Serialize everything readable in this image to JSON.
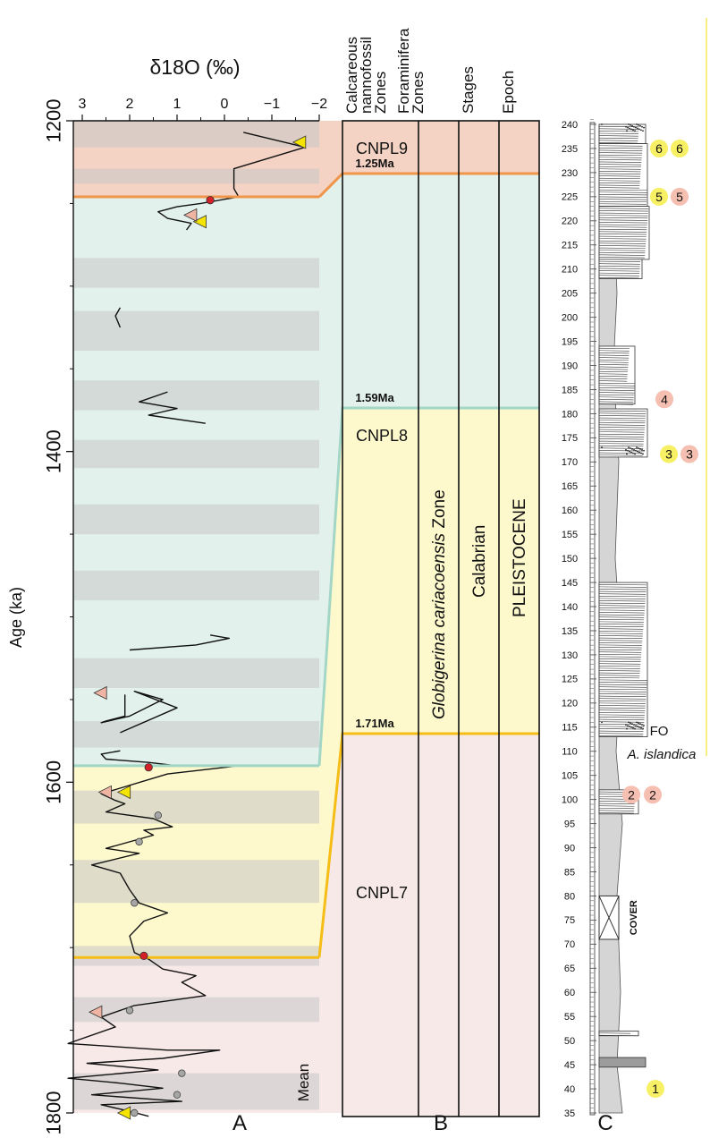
{
  "chart_data": [
    {
      "panel": "A",
      "type": "line",
      "xlabel": "δ18O (‰)",
      "ylabel": "Age (ka)",
      "mean_label": "Mean",
      "x_ticks": [
        "3",
        "2",
        "1",
        "0",
        "−1",
        "−2"
      ],
      "x_tick_values": [
        3,
        2,
        1,
        0,
        -1,
        -2
      ],
      "x_range": [
        3.3,
        -2
      ],
      "x_axis_reversed": true,
      "y_ticks": [
        "1200",
        "1400",
        "1600",
        "1800"
      ],
      "y_tick_values": [
        1200,
        1400,
        1600,
        1800
      ],
      "y_range": [
        1200,
        1800
      ],
      "y_axis_inverted": true,
      "background_bands": {
        "colors": {
          "pink": "#f4d2c4",
          "mint": "#e2f1ec",
          "yellow": "#fdf9cd",
          "rose": "#f7e9e8",
          "glacial_grey": "#c6c6c6"
        },
        "zones": [
          {
            "from": 1200,
            "to": 1246,
            "color": "pink"
          },
          {
            "from": 1246,
            "to": 1590,
            "color": "mint"
          },
          {
            "from": 1590,
            "to": 1706,
            "color": "yellow"
          },
          {
            "from": 1706,
            "to": 1800,
            "color": "rose"
          }
        ],
        "grey_intervals": [
          [
            1200,
            1216
          ],
          [
            1229,
            1238
          ],
          [
            1283,
            1301
          ],
          [
            1315,
            1339
          ],
          [
            1357,
            1375
          ],
          [
            1393,
            1410
          ],
          [
            1432,
            1450
          ],
          [
            1472,
            1490
          ],
          [
            1525,
            1543
          ],
          [
            1563,
            1579
          ],
          [
            1605,
            1625
          ],
          [
            1647,
            1673
          ],
          [
            1699,
            1711
          ],
          [
            1730,
            1745
          ],
          [
            1776,
            1798
          ]
        ]
      },
      "series": [
        {
          "color": "#111111",
          "segments": [
            [
              [
                -0.4,
                1207
              ],
              [
                -1.7,
                1216
              ],
              [
                -0.2,
                1229
              ],
              [
                -0.2,
                1237
              ],
              [
                -0.2,
                1241
              ],
              [
                -0.3,
                1246
              ],
              [
                0.5,
                1250
              ],
              [
                1,
                1252
              ],
              [
                1.4,
                1255
              ],
              [
                1.2,
                1259
              ],
              [
                0.7,
                1262
              ],
              [
                0.8,
                1266
              ]
            ],
            [
              [
                2.2,
                1313
              ],
              [
                2.3,
                1318
              ],
              [
                2.2,
                1325
              ]
            ],
            [
              [
                1.2,
                1364
              ],
              [
                1.8,
                1370
              ],
              [
                1.0,
                1374
              ],
              [
                1.6,
                1378
              ],
              [
                0.4,
                1383
              ]
            ],
            [
              [
                2.0,
                1520
              ],
              [
                0.6,
                1517
              ],
              [
                -0.1,
                1513
              ],
              [
                0.3,
                1511
              ]
            ],
            [
              [
                2.1,
                1547
              ],
              [
                2.1,
                1560
              ],
              [
                2.5,
                1563
              ],
              [
                2.6,
                1564
              ],
              [
                2.0,
                1560
              ],
              [
                1.3,
                1550
              ],
              [
                1.9,
                1545
              ],
              [
                1.0,
                1555
              ],
              [
                2.2,
                1570
              ]
            ],
            [
              [
                2.2,
                1581
              ],
              [
                2.6,
                1583
              ],
              [
                2.5,
                1586
              ],
              [
                1.6,
                1588
              ],
              [
                1.0,
                1590
              ],
              [
                -0.3,
                1590
              ],
              [
                1.2,
                1595
              ],
              [
                2.6,
                1607
              ],
              [
                2.3,
                1611
              ],
              [
                2.1,
                1613
              ],
              [
                2.5,
                1618
              ],
              [
                1.5,
                1622
              ],
              [
                1.1,
                1627
              ],
              [
                1.7,
                1629
              ],
              [
                1.5,
                1632
              ],
              [
                2.5,
                1640
              ],
              [
                1.8,
                1643
              ],
              [
                2.8,
                1650
              ],
              [
                2.2,
                1655
              ],
              [
                2.0,
                1665
              ],
              [
                1.8,
                1673
              ],
              [
                1.2,
                1679
              ],
              [
                1.7,
                1684
              ],
              [
                2.0,
                1693
              ],
              [
                1.9,
                1703
              ],
              [
                1.6,
                1707
              ],
              [
                1.3,
                1713
              ],
              [
                0.6,
                1717
              ],
              [
                0.9,
                1721
              ],
              [
                0.4,
                1729
              ],
              [
                1.9,
                1735
              ],
              [
                2.6,
                1742
              ],
              [
                2.3,
                1748
              ],
              [
                3.3,
                1758
              ],
              [
                1.2,
                1762
              ],
              [
                0.1,
                1762
              ],
              [
                1.3,
                1767
              ],
              [
                2.9,
                1770
              ],
              [
                1.4,
                1774
              ],
              [
                3.3,
                1779
              ],
              [
                2.2,
                1782
              ],
              [
                1.3,
                1785
              ],
              [
                2.8,
                1789
              ],
              [
                0.9,
                1793
              ],
              [
                2.6,
                1795
              ],
              [
                2.0,
                1799
              ],
              [
                1.6,
                1802
              ]
            ]
          ]
        }
      ],
      "markers": {
        "colors": {
          "yellow": "#f5e400",
          "salmon": "#efb4a3",
          "red": "#d42127",
          "grey": "#a6a6a6"
        },
        "yellow_triangles": [
          [
            -1.6,
            1213
          ],
          [
            0.5,
            1261
          ],
          [
            2.1,
            1606
          ],
          [
            2.1,
            1800
          ]
        ],
        "salmon_triangles": [
          [
            0.7,
            1257
          ],
          [
            2.6,
            1546
          ],
          [
            2.5,
            1606
          ],
          [
            2.7,
            1739
          ]
        ],
        "red_dots": [
          [
            0.3,
            1248
          ],
          [
            1.6,
            1591
          ],
          [
            1.7,
            1705
          ]
        ],
        "grey_dots": [
          [
            1.4,
            1620
          ],
          [
            1.8,
            1636
          ],
          [
            1.9,
            1673
          ],
          [
            2.0,
            1738
          ],
          [
            0.9,
            1776
          ],
          [
            1.0,
            1789
          ],
          [
            1.9,
            1800
          ]
        ]
      },
      "boundaries": [
        {
          "age": 1246,
          "color": "#f0964a"
        },
        {
          "age": 1590,
          "color": "#a3d6c7"
        },
        {
          "age": 1706,
          "color": "#f5bd15"
        }
      ]
    },
    {
      "panel": "B",
      "type": "table",
      "column_headers": [
        [
          "Calcareous",
          "nannofossil",
          "Zones"
        ],
        [
          "Foraminifera",
          "Zones"
        ],
        [
          "Stages"
        ],
        [
          "Epoch"
        ]
      ],
      "zones": [
        {
          "label": "CNPL9",
          "base_label": "1.25Ma",
          "color": "#f4d2c4"
        },
        {
          "label": "",
          "base_label": "1.59Ma",
          "color": "#e2f1ec"
        },
        {
          "label": "CNPL8",
          "base_label": "1.71Ma",
          "color": "#fdf9cd"
        },
        {
          "label": "CNPL7",
          "base_label": "",
          "color": "#f7e9e8"
        }
      ],
      "foraminifera_zone": {
        "italic": "Globigerina cariacoensis",
        "rest": "Zone"
      },
      "stage": "Calabrian",
      "epoch": "PLEISTOCENE",
      "panel_label": "B"
    },
    {
      "panel": "C",
      "type": "stratigraphic_log",
      "y_ticks": [
        "35",
        "40",
        "45",
        "50",
        "55",
        "60",
        "65",
        "70",
        "75",
        "80",
        "85",
        "90",
        "95",
        "100",
        "105",
        "110",
        "115",
        "120",
        "125",
        "130",
        "135",
        "140",
        "145",
        "150",
        "155",
        "160",
        "165",
        "170",
        "175",
        "180",
        "185",
        "190",
        "195",
        "200",
        "205",
        "210",
        "215",
        "220",
        "225",
        "230",
        "235",
        "240"
      ],
      "y_tick_values": [
        35,
        40,
        45,
        50,
        55,
        60,
        65,
        70,
        75,
        80,
        85,
        90,
        95,
        100,
        105,
        110,
        115,
        120,
        125,
        130,
        135,
        140,
        145,
        150,
        155,
        160,
        165,
        170,
        175,
        180,
        185,
        190,
        195,
        200,
        205,
        210,
        215,
        220,
        225,
        230,
        235,
        240
      ],
      "cover_label": "COVER",
      "fo_label": "FO",
      "fo_taxon": "A. islandica",
      "samples": [
        {
          "label": "6",
          "color": "#f7ef64",
          "level": 235
        },
        {
          "label": "6",
          "color": "#f7ef64",
          "level": 235
        },
        {
          "label": "5",
          "color": "#f7ef64",
          "level": 225
        },
        {
          "label": "5",
          "color": "#f5bfb1",
          "level": 225
        },
        {
          "label": "4",
          "color": "#f5bfb1",
          "level": 183
        },
        {
          "label": "3",
          "color": "#f7ef64",
          "level": 172
        },
        {
          "label": "3",
          "color": "#f5bfb1",
          "level": 172
        },
        {
          "label": "2",
          "color": "#f5bfb1",
          "level": 101
        },
        {
          "label": "2",
          "color": "#f5bfb1",
          "level": 101
        },
        {
          "label": "1",
          "color": "#f7ef64",
          "level": 40
        }
      ],
      "panel_label": "C"
    }
  ],
  "panel_a_label": "A"
}
